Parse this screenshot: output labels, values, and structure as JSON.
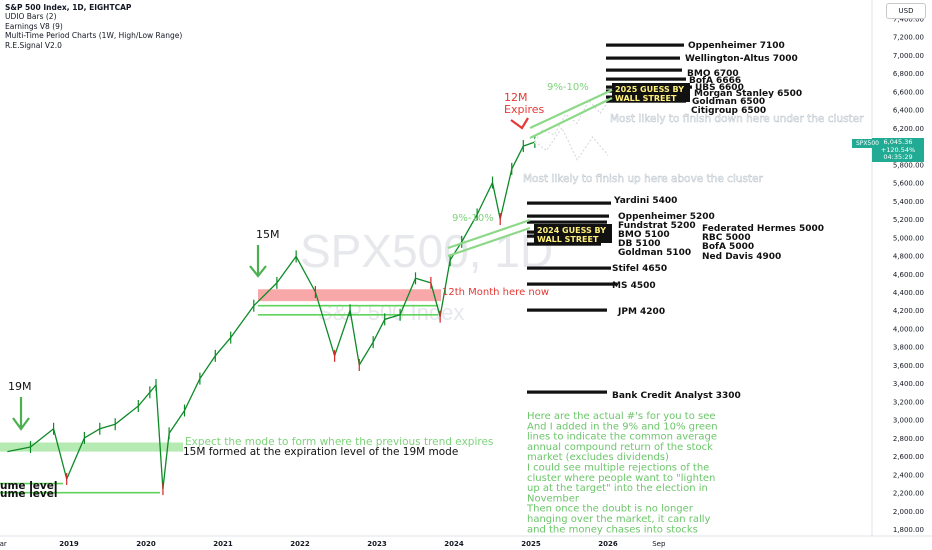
{
  "header": {
    "title": "S&P 500 Index, 1D, EIGHTCAP",
    "indicators": [
      "UDIO Bars (2)",
      "Earnings V8 (9)",
      "Multi-Time Period Charts (1W, High/Low Range)",
      "R.E.Signal V2.0"
    ],
    "currency": "USD"
  },
  "watermark": {
    "symbol": "SPX500, 1D",
    "name": "S&P 500 Index"
  },
  "price_badge": {
    "symbol": "SPX500",
    "price": "6,045.36",
    "change": "+120.54%",
    "countdown": "04:35:29"
  },
  "colors": {
    "up": "#26a69a",
    "down": "#ef5350",
    "candle": "#0d8a27",
    "candle_down": "#d62424",
    "green_text": "#4caf50",
    "red_text": "#e53935",
    "zone_red": "#f47a7a",
    "zone_green": "#9de39a",
    "badge": "#22ab94"
  },
  "annotations": {
    "twelve_m": "12M\nExpires",
    "fifteen_m": "15M",
    "nineteen_m": "19M",
    "twelfth_month": "12th Month here now",
    "pct_upper": "9%-10%",
    "pct_lower": "9%-10%",
    "guess_2025": "2025 GUESS BY\nWALL STREET",
    "guess_2024": "2024 GUESS BY\nWALL STREET",
    "likely_down": "Most likely to finish down here under the cluster",
    "likely_up": "Most likely to finish up here above the cluster",
    "expect_mode": "Expect the mode to form where the previous trend expires",
    "fifteen_formed": "15M formed at the expiration level of the 19M mode",
    "volume_level_1": "ume level",
    "volume_level_2": "ume level",
    "notes": [
      "Here are the actual #'s for you to see",
      "And I added in the 9% and 10% green",
      "lines to indicate the common average",
      "annual compound return of the stock",
      "market (excludes dividends)",
      "I could see multiple rejections of the",
      "cluster where people want to \"lighten",
      "up at the target\" into the election in",
      "November",
      "Then once the doubt is no longer",
      "hanging over the market, it can rally",
      "and the money chases into stocks"
    ]
  },
  "targets_2025": [
    "Oppenheimer 7100",
    "Wellington-Altus 7000",
    "BMO 6700",
    "BofA 6666",
    "UBS 6600",
    "Morgan Stanley 6500",
    "Goldman 6500",
    "Citigroup 6500"
  ],
  "targets_2024": [
    "Yardini 5400",
    "Oppenheimer 5200",
    "Fundstrat 5200",
    "BMO 5100",
    "DB 5100",
    "Goldman 5100",
    "Federated Hermes 5000",
    "RBC 5000",
    "BofA 5000",
    "Ned Davis 4900",
    "Stifel 4650",
    "MS 4500",
    "JPM 4200",
    "Bank Credit Analyst 3300"
  ],
  "chart_data": {
    "type": "line",
    "title": "S&P 500 Index, 1D, EIGHTCAP",
    "x_axis_labels": [
      "Mar",
      "2019",
      "2020",
      "2021",
      "2022",
      "2023",
      "2024",
      "2025",
      "2026",
      "Sep"
    ],
    "y_axis_labels": [
      "7,400.00",
      "7,200.00",
      "7,000.00",
      "6,800.00",
      "6,600.00",
      "6,400.00",
      "6,200.00",
      "6,000.00",
      "5,800.00",
      "5,600.00",
      "5,400.00",
      "5,200.00",
      "5,000.00",
      "4,800.00",
      "4,600.00",
      "4,400.00",
      "4,200.00",
      "4,000.00",
      "3,800.00",
      "3,600.00",
      "3,400.00",
      "3,200.00",
      "3,000.00",
      "2,800.00",
      "2,600.00",
      "2,400.00",
      "2,200.00",
      "2,000.00",
      "1,800.00"
    ],
    "ylim": [
      1700,
      7500
    ],
    "x": [
      2018.2,
      2018.5,
      2018.8,
      2018.97,
      2019.2,
      2019.4,
      2019.6,
      2019.9,
      2020.05,
      2020.13,
      2020.22,
      2020.3,
      2020.5,
      2020.7,
      2020.9,
      2021.1,
      2021.4,
      2021.7,
      2021.95,
      2022.2,
      2022.45,
      2022.65,
      2022.77,
      2022.95,
      2023.1,
      2023.3,
      2023.5,
      2023.7,
      2023.82,
      2023.95,
      2024.1,
      2024.3,
      2024.5,
      2024.6,
      2024.75,
      2024.9,
      2025.05
    ],
    "values": [
      2650,
      2700,
      2900,
      2350,
      2800,
      2900,
      2950,
      3150,
      3300,
      3380,
      2240,
      2850,
      3100,
      3450,
      3700,
      3900,
      4250,
      4500,
      4790,
      4400,
      3700,
      4200,
      3600,
      3850,
      4100,
      4150,
      4550,
      4500,
      4130,
      4750,
      4950,
      5250,
      5600,
      5200,
      5750,
      6000,
      6045
    ],
    "scenarios": [
      {
        "name": "up",
        "x": [
          2025.05,
          2025.15,
          2025.3,
          2025.45,
          2025.6,
          2025.75,
          2025.9,
          2026.05
        ],
        "values": [
          6050,
          6180,
          6120,
          6350,
          6250,
          6500,
          6360,
          6550
        ]
      },
      {
        "name": "down",
        "x": [
          2025.05,
          2025.2,
          2025.4,
          2025.6,
          2025.8,
          2026.0
        ],
        "values": [
          6050,
          5950,
          6200,
          5850,
          6100,
          5900
        ]
      }
    ],
    "levels": [
      {
        "label": "zone_red",
        "low": 4300,
        "high": 4430
      },
      {
        "label": "line_4150",
        "value": 4150
      },
      {
        "label": "line_4250",
        "value": 4250
      },
      {
        "label": "green_zone",
        "low": 2650,
        "high": 2750
      },
      {
        "label": "line_2200",
        "value": 2200
      },
      {
        "label": "line_2300",
        "value": 2300
      }
    ],
    "grid": false,
    "legend": "top-left"
  }
}
